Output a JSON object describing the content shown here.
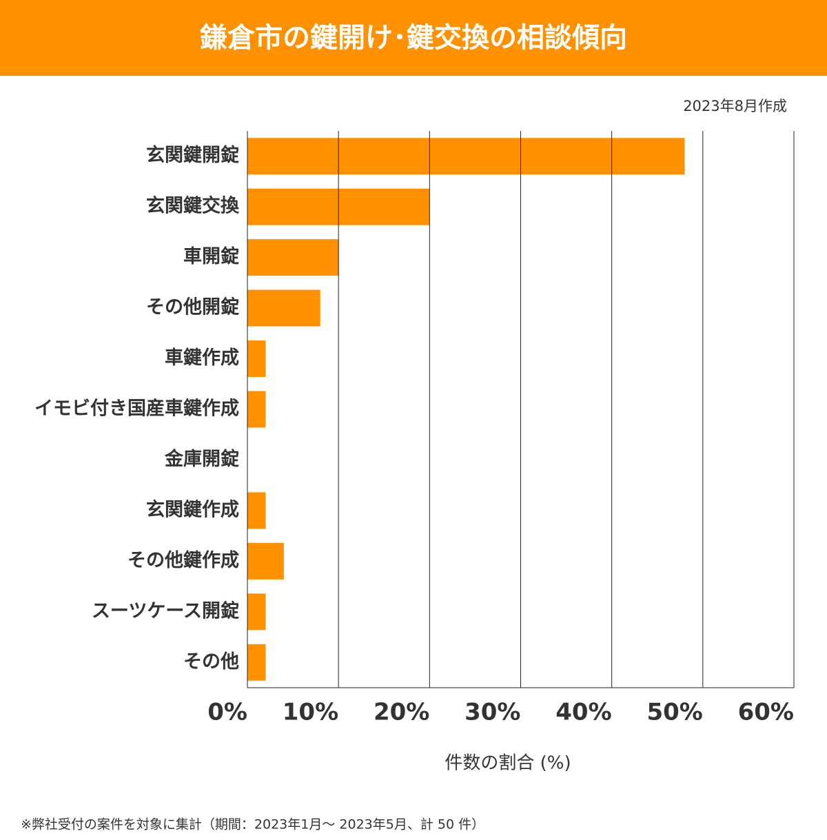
{
  "chart_data": {
    "type": "barh",
    "title": "鎌倉市の鍵開け･鍵交換の相談傾向",
    "subtitle": "2023年8月作成",
    "x_label": "件数の割合 (%)",
    "footnote": "※弊社受付の案件を対象に集計（期間：2023年1月～ 2023年5月、計 50 件）",
    "categories": [
      "玄関鍵開錠",
      "玄関鍵交換",
      "車開錠",
      "その他開錠",
      "車鍵作成",
      "イモビ付き国産車鍵作成",
      "金庫開錠",
      "玄関鍵作成",
      "その他鍵作成",
      "スーツケース開錠",
      "その他"
    ],
    "values": [
      48,
      20,
      10,
      8,
      2,
      2,
      0,
      2,
      4,
      2,
      2
    ],
    "color": "#ff9100",
    "xlim": [
      0,
      60
    ],
    "xticks": [
      {
        "value": 0,
        "label": "0%"
      },
      {
        "value": 10,
        "label": "10%"
      },
      {
        "value": 20,
        "label": "20%"
      },
      {
        "value": 30,
        "label": "30%"
      },
      {
        "value": 40,
        "label": "40%"
      },
      {
        "value": 50,
        "label": "50%"
      },
      {
        "value": 60,
        "label": "60%"
      }
    ],
    "grid": true
  }
}
